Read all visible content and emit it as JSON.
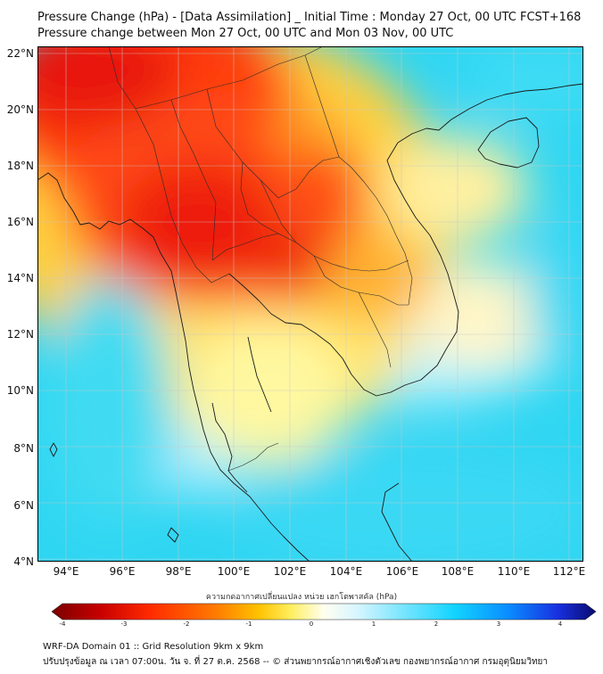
{
  "title": "Pressure Change (hPa) - [Data Assimilation] _ Initial Time : Monday 27 Oct, 00 UTC FCST+168",
  "subtitle": "Pressure change between Mon 27 Oct, 00 UTC and Mon 03 Nov, 00 UTC",
  "map": {
    "lat_range": [
      "4°N",
      "22°N"
    ],
    "lon_range": [
      "93°E",
      "113°E"
    ],
    "lat_ticks": [
      "22°N",
      "20°N",
      "18°N",
      "16°N",
      "14°N",
      "12°N",
      "10°N",
      "8°N",
      "6°N",
      "4°N"
    ],
    "lon_ticks": [
      "94°E",
      "96°E",
      "98°E",
      "100°E",
      "102°E",
      "104°E",
      "106°E",
      "108°E",
      "110°E",
      "112°E"
    ],
    "grid": true
  },
  "colorbar": {
    "label": "ความกดอากาศเปลี่ยนแปลง หน่วย เฮกโตพาสคัล (hPa)",
    "ticks": [
      "-4",
      "-3",
      "-2",
      "-1",
      "0",
      "1",
      "2",
      "3",
      "4"
    ],
    "colors": [
      "#7a0000",
      "#c80000",
      "#ff2a00",
      "#ff7a00",
      "#ffc200",
      "#ffef60",
      "#fffff0",
      "#d8f6ff",
      "#7fe6ff",
      "#12d4ff",
      "#0a8cff",
      "#1830e0",
      "#0a0a6e"
    ]
  },
  "footer": {
    "line1": "WRF-DA Domain 01 :: Grid Resolution 9km x 9km",
    "line2": "ปรับปรุงข้อมูล ณ เวลา 07:00น. วัน จ. ที่ 27 ต.ค. 2568 -- © ส่วนพยากรณ์อากาศเชิงตัวเลข กองพยากรณ์อากาศ กรมอุตุนิยมวิทยา"
  }
}
